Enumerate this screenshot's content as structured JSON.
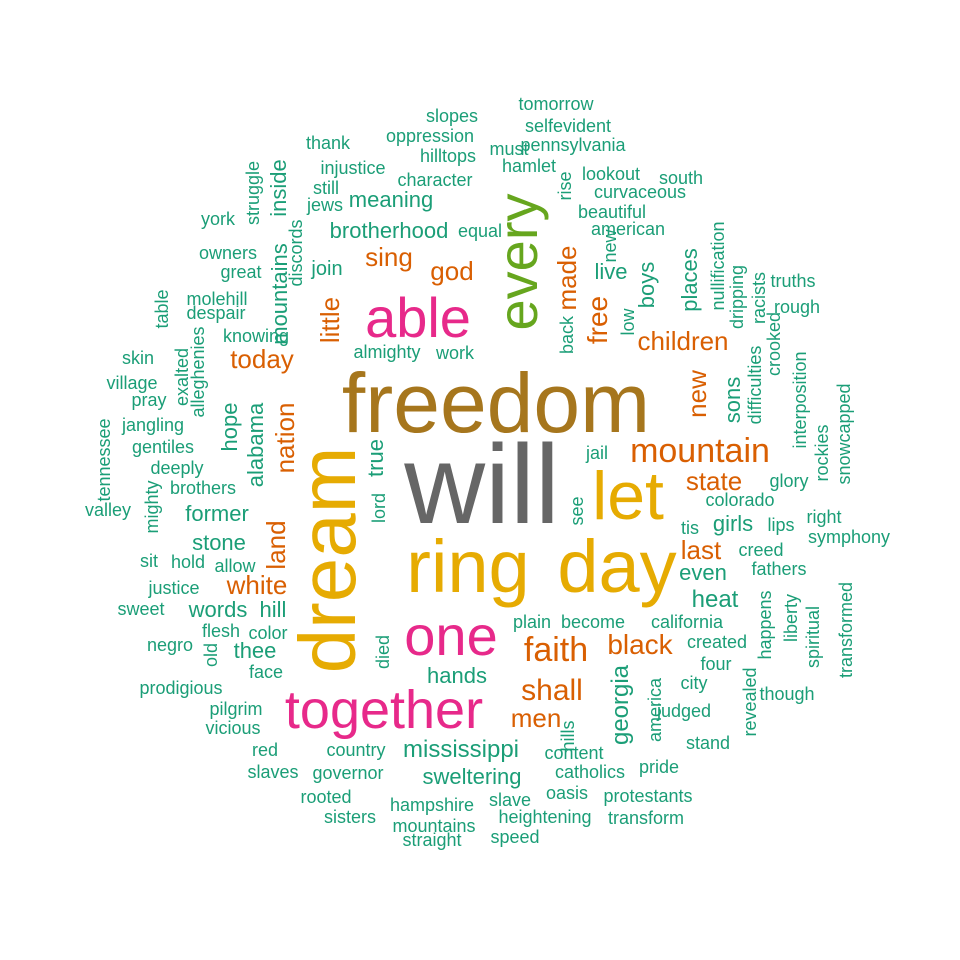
{
  "palette": {
    "teal": "#1b9e77",
    "orange": "#d95f02",
    "magenta": "#e7298a",
    "green": "#66a61e",
    "gold": "#e6ab02",
    "brown": "#a6761d",
    "grey": "#666666"
  },
  "words": [
    {
      "text": "will",
      "color": "grey",
      "vertical": false
    },
    {
      "text": "freedom",
      "color": "brown",
      "vertical": false
    },
    {
      "text": "ring",
      "color": "gold",
      "vertical": false
    },
    {
      "text": "day",
      "color": "gold",
      "vertical": false
    },
    {
      "text": "dream",
      "color": "gold",
      "vertical": true
    },
    {
      "text": "let",
      "color": "gold",
      "vertical": false
    },
    {
      "text": "every",
      "color": "green",
      "vertical": true
    },
    {
      "text": "able",
      "color": "magenta",
      "vertical": false
    },
    {
      "text": "one",
      "color": "magenta",
      "vertical": false
    },
    {
      "text": "together",
      "color": "magenta",
      "vertical": false
    },
    {
      "text": "mountain",
      "color": "orange",
      "vertical": false
    },
    {
      "text": "faith",
      "color": "orange",
      "vertical": false
    },
    {
      "text": "shall",
      "color": "orange",
      "vertical": false
    },
    {
      "text": "black",
      "color": "orange",
      "vertical": false
    },
    {
      "text": "free",
      "color": "orange",
      "vertical": true
    },
    {
      "text": "made",
      "color": "orange",
      "vertical": true
    },
    {
      "text": "god",
      "color": "orange",
      "vertical": false
    },
    {
      "text": "sing",
      "color": "orange",
      "vertical": false
    },
    {
      "text": "little",
      "color": "orange",
      "vertical": true
    },
    {
      "text": "today",
      "color": "orange",
      "vertical": false
    },
    {
      "text": "nation",
      "color": "orange",
      "vertical": true
    },
    {
      "text": "land",
      "color": "orange",
      "vertical": true
    },
    {
      "text": "white",
      "color": "orange",
      "vertical": false
    },
    {
      "text": "children",
      "color": "orange",
      "vertical": false
    },
    {
      "text": "new",
      "color": "orange",
      "vertical": true
    },
    {
      "text": "state",
      "color": "orange",
      "vertical": false
    },
    {
      "text": "last",
      "color": "orange",
      "vertical": false
    },
    {
      "text": "men",
      "color": "orange",
      "vertical": false
    },
    {
      "text": "tomorrow",
      "color": "teal",
      "vertical": false
    },
    {
      "text": "slopes",
      "color": "teal",
      "vertical": false
    },
    {
      "text": "selfevident",
      "color": "teal",
      "vertical": false
    },
    {
      "text": "oppression",
      "color": "teal",
      "vertical": false
    },
    {
      "text": "thank",
      "color": "teal",
      "vertical": false
    },
    {
      "text": "must",
      "color": "teal",
      "vertical": false
    },
    {
      "text": "pennsylvania",
      "color": "teal",
      "vertical": false
    },
    {
      "text": "hilltops",
      "color": "teal",
      "vertical": false
    },
    {
      "text": "injustice",
      "color": "teal",
      "vertical": false
    },
    {
      "text": "hamlet",
      "color": "teal",
      "vertical": false
    },
    {
      "text": "character",
      "color": "teal",
      "vertical": false
    },
    {
      "text": "lookout",
      "color": "teal",
      "vertical": false
    },
    {
      "text": "south",
      "color": "teal",
      "vertical": false
    },
    {
      "text": "still",
      "color": "teal",
      "vertical": false
    },
    {
      "text": "rise",
      "color": "teal",
      "vertical": true
    },
    {
      "text": "curvaceous",
      "color": "teal",
      "vertical": false
    },
    {
      "text": "struggle",
      "color": "teal",
      "vertical": true
    },
    {
      "text": "jews",
      "color": "teal",
      "vertical": false
    },
    {
      "text": "meaning",
      "color": "teal",
      "vertical": false
    },
    {
      "text": "beautiful",
      "color": "teal",
      "vertical": false
    },
    {
      "text": "york",
      "color": "teal",
      "vertical": false
    },
    {
      "text": "inside",
      "color": "teal",
      "vertical": true
    },
    {
      "text": "american",
      "color": "teal",
      "vertical": false
    },
    {
      "text": "brotherhood",
      "color": "teal",
      "vertical": false
    },
    {
      "text": "discords",
      "color": "teal",
      "vertical": true
    },
    {
      "text": "equal",
      "color": "teal",
      "vertical": false
    },
    {
      "text": "new",
      "color": "teal",
      "vertical": true
    },
    {
      "text": "nullification",
      "color": "teal",
      "vertical": true
    },
    {
      "text": "owners",
      "color": "teal",
      "vertical": false
    },
    {
      "text": "great",
      "color": "teal",
      "vertical": false
    },
    {
      "text": "join",
      "color": "teal",
      "vertical": false
    },
    {
      "text": "live",
      "color": "teal",
      "vertical": false
    },
    {
      "text": "truths",
      "color": "teal",
      "vertical": false
    },
    {
      "text": "places",
      "color": "teal",
      "vertical": true
    },
    {
      "text": "dripping",
      "color": "teal",
      "vertical": true
    },
    {
      "text": "racists",
      "color": "teal",
      "vertical": true
    },
    {
      "text": "mountains",
      "color": "teal",
      "vertical": true
    },
    {
      "text": "molehill",
      "color": "teal",
      "vertical": false
    },
    {
      "text": "boys",
      "color": "teal",
      "vertical": true
    },
    {
      "text": "low",
      "color": "teal",
      "vertical": true
    },
    {
      "text": "rough",
      "color": "teal",
      "vertical": false
    },
    {
      "text": "table",
      "color": "teal",
      "vertical": true
    },
    {
      "text": "despair",
      "color": "teal",
      "vertical": false
    },
    {
      "text": "knowing",
      "color": "teal",
      "vertical": false
    },
    {
      "text": "back",
      "color": "teal",
      "vertical": true
    },
    {
      "text": "almighty",
      "color": "teal",
      "vertical": false
    },
    {
      "text": "work",
      "color": "teal",
      "vertical": false
    },
    {
      "text": "crooked",
      "color": "teal",
      "vertical": true
    },
    {
      "text": "skin",
      "color": "teal",
      "vertical": false
    },
    {
      "text": "exalted",
      "color": "teal",
      "vertical": true
    },
    {
      "text": "alleghenies",
      "color": "teal",
      "vertical": true
    },
    {
      "text": "sons",
      "color": "teal",
      "vertical": true
    },
    {
      "text": "difficulties",
      "color": "teal",
      "vertical": true
    },
    {
      "text": "interposition",
      "color": "teal",
      "vertical": true
    },
    {
      "text": "village",
      "color": "teal",
      "vertical": false
    },
    {
      "text": "pray",
      "color": "teal",
      "vertical": false
    },
    {
      "text": "snowcapped",
      "color": "teal",
      "vertical": true
    },
    {
      "text": "jangling",
      "color": "teal",
      "vertical": false
    },
    {
      "text": "hope",
      "color": "teal",
      "vertical": true
    },
    {
      "text": "alabama",
      "color": "teal",
      "vertical": true
    },
    {
      "text": "tennessee",
      "color": "teal",
      "vertical": true
    },
    {
      "text": "gentiles",
      "color": "teal",
      "vertical": false
    },
    {
      "text": "jail",
      "color": "teal",
      "vertical": false
    },
    {
      "text": "rockies",
      "color": "teal",
      "vertical": true
    },
    {
      "text": "deeply",
      "color": "teal",
      "vertical": false
    },
    {
      "text": "true",
      "color": "teal",
      "vertical": true
    },
    {
      "text": "glory",
      "color": "teal",
      "vertical": false
    },
    {
      "text": "brothers",
      "color": "teal",
      "vertical": false
    },
    {
      "text": "colorado",
      "color": "teal",
      "vertical": false
    },
    {
      "text": "lord",
      "color": "teal",
      "vertical": true
    },
    {
      "text": "valley",
      "color": "teal",
      "vertical": false
    },
    {
      "text": "mighty",
      "color": "teal",
      "vertical": true
    },
    {
      "text": "former",
      "color": "teal",
      "vertical": false
    },
    {
      "text": "right",
      "color": "teal",
      "vertical": false
    },
    {
      "text": "tis",
      "color": "teal",
      "vertical": false
    },
    {
      "text": "girls",
      "color": "teal",
      "vertical": false
    },
    {
      "text": "lips",
      "color": "teal",
      "vertical": false
    },
    {
      "text": "see",
      "color": "teal",
      "vertical": true
    },
    {
      "text": "symphony",
      "color": "teal",
      "vertical": false
    },
    {
      "text": "stone",
      "color": "teal",
      "vertical": false
    },
    {
      "text": "creed",
      "color": "teal",
      "vertical": false
    },
    {
      "text": "sit",
      "color": "teal",
      "vertical": false
    },
    {
      "text": "hold",
      "color": "teal",
      "vertical": false
    },
    {
      "text": "allow",
      "color": "teal",
      "vertical": false
    },
    {
      "text": "even",
      "color": "teal",
      "vertical": false
    },
    {
      "text": "fathers",
      "color": "teal",
      "vertical": false
    },
    {
      "text": "justice",
      "color": "teal",
      "vertical": false
    },
    {
      "text": "transformed",
      "color": "teal",
      "vertical": true
    },
    {
      "text": "heat",
      "color": "teal",
      "vertical": false
    },
    {
      "text": "sweet",
      "color": "teal",
      "vertical": false
    },
    {
      "text": "words",
      "color": "teal",
      "vertical": false
    },
    {
      "text": "hill",
      "color": "teal",
      "vertical": false
    },
    {
      "text": "happens",
      "color": "teal",
      "vertical": true
    },
    {
      "text": "liberty",
      "color": "teal",
      "vertical": true
    },
    {
      "text": "spiritual",
      "color": "teal",
      "vertical": true
    },
    {
      "text": "plain",
      "color": "teal",
      "vertical": false
    },
    {
      "text": "become",
      "color": "teal",
      "vertical": false
    },
    {
      "text": "california",
      "color": "teal",
      "vertical": false
    },
    {
      "text": "flesh",
      "color": "teal",
      "vertical": false
    },
    {
      "text": "color",
      "color": "teal",
      "vertical": false
    },
    {
      "text": "created",
      "color": "teal",
      "vertical": false
    },
    {
      "text": "negro",
      "color": "teal",
      "vertical": false
    },
    {
      "text": "thee",
      "color": "teal",
      "vertical": false
    },
    {
      "text": "old",
      "color": "teal",
      "vertical": true
    },
    {
      "text": "died",
      "color": "teal",
      "vertical": true
    },
    {
      "text": "four",
      "color": "teal",
      "vertical": false
    },
    {
      "text": "face",
      "color": "teal",
      "vertical": false
    },
    {
      "text": "georgia",
      "color": "teal",
      "vertical": true
    },
    {
      "text": "america",
      "color": "teal",
      "vertical": true
    },
    {
      "text": "city",
      "color": "teal",
      "vertical": false
    },
    {
      "text": "revealed",
      "color": "teal",
      "vertical": true
    },
    {
      "text": "hands",
      "color": "teal",
      "vertical": false
    },
    {
      "text": "prodigious",
      "color": "teal",
      "vertical": false
    },
    {
      "text": "though",
      "color": "teal",
      "vertical": false
    },
    {
      "text": "pilgrim",
      "color": "teal",
      "vertical": false
    },
    {
      "text": "judged",
      "color": "teal",
      "vertical": false
    },
    {
      "text": "hills",
      "color": "teal",
      "vertical": true
    },
    {
      "text": "vicious",
      "color": "teal",
      "vertical": false
    },
    {
      "text": "stand",
      "color": "teal",
      "vertical": false
    },
    {
      "text": "mississippi",
      "color": "teal",
      "vertical": false
    },
    {
      "text": "red",
      "color": "teal",
      "vertical": false
    },
    {
      "text": "country",
      "color": "teal",
      "vertical": false
    },
    {
      "text": "content",
      "color": "teal",
      "vertical": false
    },
    {
      "text": "pride",
      "color": "teal",
      "vertical": false
    },
    {
      "text": "slaves",
      "color": "teal",
      "vertical": false
    },
    {
      "text": "governor",
      "color": "teal",
      "vertical": false
    },
    {
      "text": "sweltering",
      "color": "teal",
      "vertical": false
    },
    {
      "text": "catholics",
      "color": "teal",
      "vertical": false
    },
    {
      "text": "oasis",
      "color": "teal",
      "vertical": false
    },
    {
      "text": "rooted",
      "color": "teal",
      "vertical": false
    },
    {
      "text": "slave",
      "color": "teal",
      "vertical": false
    },
    {
      "text": "protestants",
      "color": "teal",
      "vertical": false
    },
    {
      "text": "hampshire",
      "color": "teal",
      "vertical": false
    },
    {
      "text": "sisters",
      "color": "teal",
      "vertical": false
    },
    {
      "text": "heightening",
      "color": "teal",
      "vertical": false
    },
    {
      "text": "transform",
      "color": "teal",
      "vertical": false
    },
    {
      "text": "mountains",
      "color": "teal",
      "vertical": false
    },
    {
      "text": "straight",
      "color": "teal",
      "vertical": false
    },
    {
      "text": "speed",
      "color": "teal",
      "vertical": false
    }
  ]
}
